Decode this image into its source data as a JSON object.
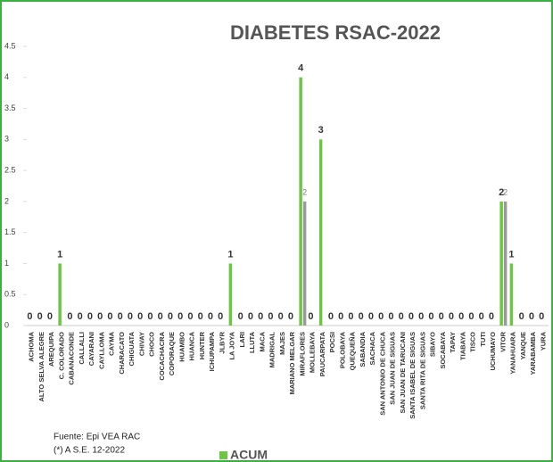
{
  "chart_data": {
    "type": "bar",
    "title": "DIABETES RSAC-2022",
    "categories": [
      "ACHOMA",
      "ALTO SELVA ALEGRE",
      "AREQUIPA",
      "C. COLORADO",
      "CABANACONDE",
      "CALLALLI",
      "CAYARANI",
      "CAYLLOMA",
      "CAYMA",
      "CHARACATO",
      "CHIGUATA",
      "CHIVAY",
      "CHOCO",
      "COCACHACRA",
      "COPORAQUE",
      "HUAMBO",
      "HUANCA",
      "HUNTER",
      "ICHUPAMPA",
      "JLBYR",
      "LA JOYA",
      "LARI",
      "LLUTA",
      "MACA",
      "MADRIGAL",
      "MAJES",
      "MARIANO MELGAR",
      "MIRAFLORES",
      "MOLLEBAYA",
      "PAUCARPATA",
      "POCSI",
      "POLOBAYA",
      "QUEQUEÑA",
      "SABANDIA",
      "SACHACA",
      "SAN ANTONIO DE CHUCA",
      "SAN JUAN DE SIGUAS",
      "SAN JUAN DE TARUCANI",
      "SANTA ISABEL DE SIGUAS",
      "SANTA RITA DE SIGUAS",
      "SIBAYO",
      "SOCABAYA",
      "TAPAY",
      "TIABAYA",
      "TISCO",
      "TUTI",
      "UCHUMAYO",
      "VITOR",
      "YANAHUARA",
      "YANQUE",
      "YARABAMBA",
      "YURA"
    ],
    "series": [
      {
        "name": "ACUM",
        "color": "#6cc644",
        "values": [
          0,
          0,
          0,
          1,
          0,
          0,
          0,
          0,
          0,
          0,
          0,
          0,
          0,
          0,
          0,
          0,
          0,
          0,
          0,
          0,
          1,
          0,
          0,
          0,
          0,
          0,
          0,
          4,
          0,
          3,
          0,
          0,
          0,
          0,
          0,
          0,
          0,
          0,
          0,
          0,
          0,
          0,
          0,
          0,
          0,
          0,
          0,
          2,
          1,
          0,
          0,
          0
        ]
      },
      {
        "color": "#9a9a9a",
        "values": [
          null,
          null,
          null,
          null,
          null,
          null,
          null,
          null,
          null,
          null,
          null,
          null,
          null,
          null,
          null,
          null,
          null,
          null,
          null,
          null,
          null,
          null,
          null,
          null,
          null,
          null,
          null,
          2,
          null,
          null,
          null,
          null,
          null,
          null,
          null,
          null,
          null,
          null,
          null,
          null,
          null,
          null,
          null,
          null,
          null,
          null,
          null,
          2,
          null,
          null,
          null,
          null
        ]
      }
    ],
    "ylim": [
      0,
      4.5
    ],
    "yticks": [
      0,
      0.5,
      1,
      1.5,
      2,
      2.5,
      3,
      3.5,
      4,
      4.5
    ],
    "notes": [
      "Fuente:  Epi VEA RAC",
      "(*) A S.E. 12-2022"
    ]
  }
}
